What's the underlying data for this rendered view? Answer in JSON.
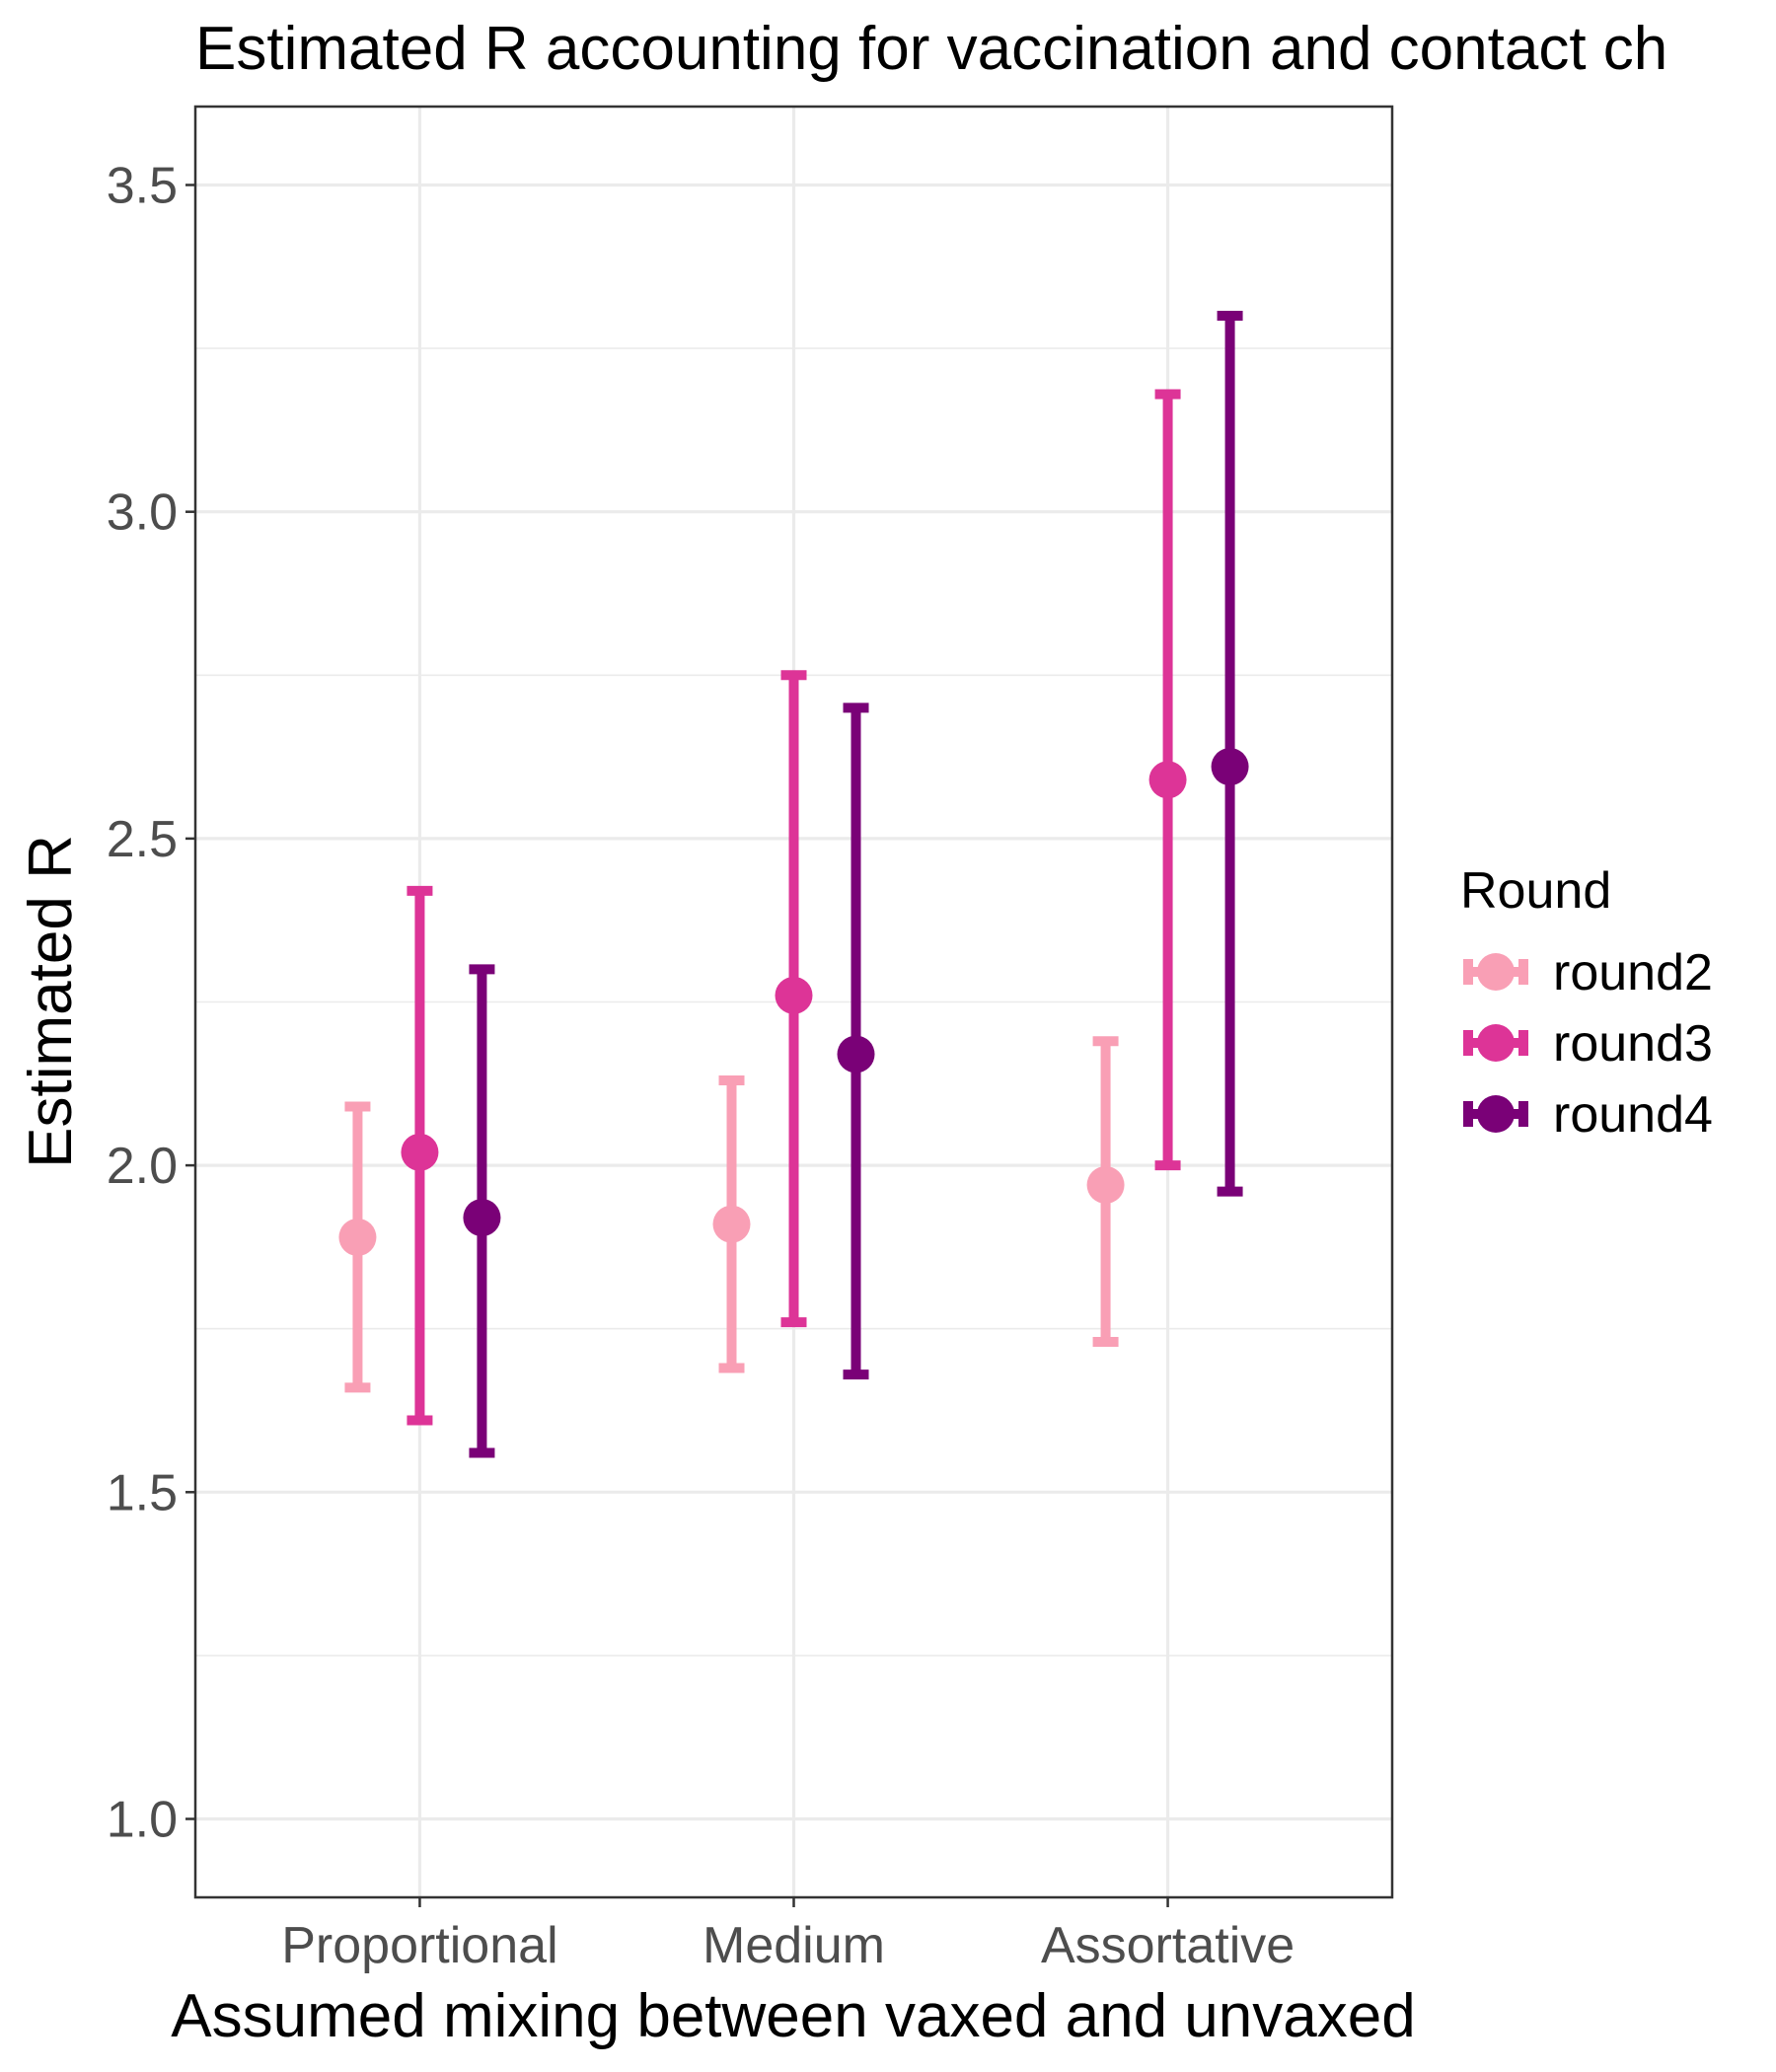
{
  "chart_data": {
    "type": "errorbar",
    "title": "Estimated R accounting for vaccination and contact ch",
    "xlabel": "Assumed mixing between vaxed and unvaxed",
    "ylabel": "Estimated R",
    "categories": [
      "Proportional",
      "Medium",
      "Assortative"
    ],
    "ylim": [
      0.88,
      3.62
    ],
    "yticks": [
      1.0,
      1.5,
      2.0,
      2.5,
      3.0,
      3.5
    ],
    "ytick_labels": [
      "1.0",
      "1.5",
      "2.0",
      "2.5",
      "3.0",
      "3.5"
    ],
    "grid": true,
    "legend": {
      "title": "Round",
      "position": "right"
    },
    "series": [
      {
        "name": "round2",
        "color": "#f99fb5",
        "estimate": [
          1.89,
          1.91,
          1.97
        ],
        "lower": [
          1.66,
          1.69,
          1.73
        ],
        "upper": [
          2.09,
          2.13,
          2.19
        ]
      },
      {
        "name": "round3",
        "color": "#dd3497",
        "estimate": [
          2.02,
          2.26,
          2.59
        ],
        "lower": [
          1.61,
          1.76,
          2.0
        ],
        "upper": [
          2.42,
          2.75,
          3.18
        ]
      },
      {
        "name": "round4",
        "color": "#7a0177",
        "estimate": [
          1.92,
          2.17,
          2.61
        ],
        "lower": [
          1.56,
          1.68,
          1.96
        ],
        "upper": [
          2.3,
          2.7,
          3.3
        ]
      }
    ]
  }
}
